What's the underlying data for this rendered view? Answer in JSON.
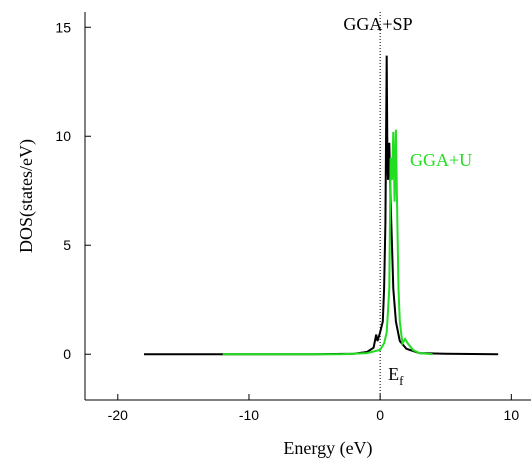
{
  "chart_data": {
    "type": "line",
    "x_label": "Energy (eV)",
    "y_label": "DOS(states/eV)",
    "xlim": [
      -22.5,
      11.5
    ],
    "ylim": [
      -2.1,
      15.7
    ],
    "xticks": [
      -20,
      -10,
      0,
      10
    ],
    "yticks": [
      0,
      5,
      10,
      15
    ],
    "fermi_level": 0,
    "fermi_label": {
      "text": "E",
      "subscript": "f"
    },
    "series": [
      {
        "name": "GGA+SP",
        "color": "#000000",
        "x": [
          -18,
          -5,
          -2,
          -1,
          -0.5,
          -0.3,
          -0.2,
          0,
          0.2,
          0.3,
          0.4,
          0.5,
          0.55,
          0.6,
          0.7,
          0.8,
          0.9,
          1.0,
          1.2,
          1.5,
          2,
          3,
          5,
          9
        ],
        "values": [
          0,
          0,
          0.02,
          0.1,
          0.3,
          0.9,
          0.6,
          1.0,
          1.5,
          3,
          6,
          13.7,
          9,
          8,
          9.7,
          7,
          5,
          3,
          1.5,
          0.6,
          0.25,
          0.05,
          0.02,
          0
        ]
      },
      {
        "name": "GGA+U",
        "color": "#22dd22",
        "x": [
          -12,
          -3,
          -1,
          0,
          0.3,
          0.5,
          0.7,
          0.8,
          0.9,
          1.0,
          1.1,
          1.2,
          1.3,
          1.4,
          1.5,
          1.7,
          1.9,
          2.1,
          2.5,
          3,
          4
        ],
        "values": [
          0,
          0,
          0.05,
          0.2,
          0.5,
          1.0,
          3,
          9,
          8,
          10.2,
          7,
          10.3,
          6.5,
          3,
          1.5,
          0.5,
          0.7,
          0.5,
          0.2,
          0.05,
          0
        ]
      }
    ]
  }
}
